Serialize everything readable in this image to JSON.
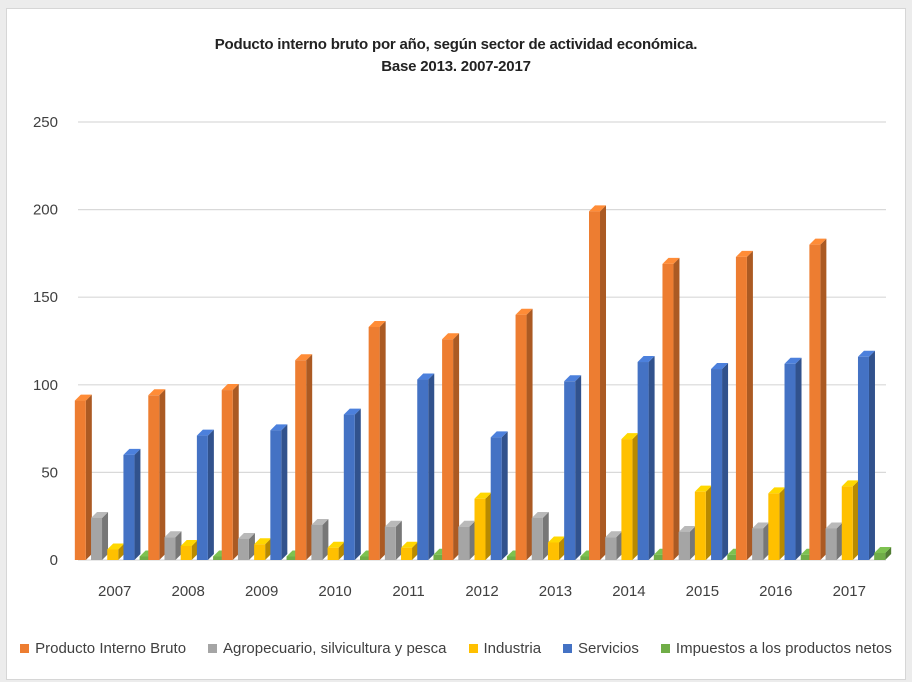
{
  "chart_data": {
    "type": "bar",
    "title": "Poducto interno bruto por año, según sector de actividad económica.",
    "subtitle": "Base 2013. 2007-2017",
    "xlabel": "",
    "ylabel": "",
    "ylim": [
      0,
      250
    ],
    "yticks": [
      0,
      50,
      100,
      150,
      200,
      250
    ],
    "grid": true,
    "legend_position": "bottom",
    "categories": [
      "2007",
      "2008",
      "2009",
      "2010",
      "2011",
      "2012",
      "2013",
      "2014",
      "2015",
      "2016",
      "2017"
    ],
    "series": [
      {
        "name": "Producto Interno Bruto",
        "color": "#ed7d31",
        "values": [
          91,
          94,
          97,
          114,
          133,
          126,
          140,
          199,
          169,
          173,
          180
        ]
      },
      {
        "name": "Agropecuario, silvicultura y pesca",
        "color": "#a5a5a5",
        "values": [
          24,
          13,
          12,
          20,
          19,
          19,
          24,
          13,
          16,
          18,
          18
        ]
      },
      {
        "name": "Industria",
        "color": "#ffc000",
        "values": [
          6,
          8,
          9,
          7,
          7,
          35,
          10,
          69,
          39,
          38,
          42
        ]
      },
      {
        "name": "Servicios",
        "color": "#4472c4",
        "values": [
          60,
          71,
          74,
          83,
          103,
          70,
          102,
          113,
          109,
          112,
          116
        ]
      },
      {
        "name": "Impuestos a los productos netos",
        "color": "#70ad47",
        "values": [
          2,
          2,
          2,
          2,
          3,
          2,
          2,
          3,
          3,
          3,
          4
        ]
      }
    ]
  }
}
